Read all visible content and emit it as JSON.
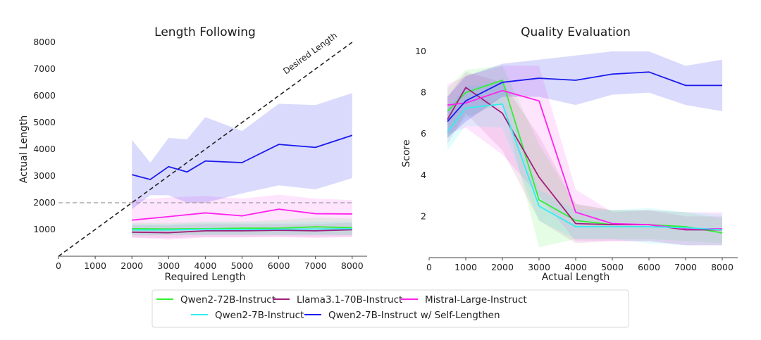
{
  "chart_data": [
    {
      "type": "line",
      "title": "Length Following",
      "xlabel": "Required Length",
      "ylabel": "Actual Length",
      "xlim": [
        0,
        8400
      ],
      "ylim": [
        0,
        8000
      ],
      "xticks": [
        0,
        1000,
        2000,
        3000,
        4000,
        5000,
        6000,
        7000,
        8000
      ],
      "yticks": [
        1000,
        2000,
        3000,
        4000,
        5000,
        6000,
        7000,
        8000
      ],
      "grid": false,
      "reference_lines": [
        {
          "label": "Desired Length",
          "from": [
            0,
            0
          ],
          "to": [
            8000,
            8000
          ],
          "style": "dashed",
          "color": "#222222"
        },
        {
          "label": "",
          "y": 2000,
          "from_x": 0,
          "to_x": 8000,
          "style": "dashed",
          "color": "#999999"
        }
      ],
      "series": [
        {
          "name": "Qwen2-72B-Instruct",
          "color": "#33ee33",
          "x": [
            2000,
            3000,
            4000,
            5000,
            6000,
            7000,
            8000
          ],
          "values": [
            1030,
            1020,
            1030,
            1050,
            1050,
            1100,
            1070
          ],
          "lower": [
            780,
            780,
            800,
            800,
            800,
            800,
            800
          ],
          "upper": [
            1250,
            1250,
            1300,
            1300,
            1350,
            1450,
            1400
          ]
        },
        {
          "name": "Llama3.1-70B-Instruct",
          "color": "#a0207a",
          "x": [
            2000,
            3000,
            4000,
            5000,
            6000,
            7000,
            8000
          ],
          "values": [
            900,
            880,
            950,
            950,
            970,
            950,
            990
          ],
          "lower": [
            700,
            680,
            720,
            720,
            740,
            720,
            740
          ],
          "upper": [
            1150,
            1150,
            1200,
            1200,
            1200,
            1200,
            1250
          ]
        },
        {
          "name": "Mistral-Large-Instruct",
          "color": "#ff22ee",
          "x": [
            2000,
            3000,
            4000,
            5000,
            6000,
            7000,
            8000
          ],
          "values": [
            1350,
            1480,
            1620,
            1510,
            1760,
            1590,
            1580
          ],
          "lower": [
            700,
            620,
            700,
            700,
            720,
            680,
            720
          ],
          "upper": [
            2100,
            2200,
            2250,
            2150,
            2300,
            2150,
            2100
          ]
        },
        {
          "name": "Qwen2-7B-Instruct",
          "color": "#33eeee",
          "x": [
            2000,
            3000,
            4000,
            5000,
            6000,
            7000,
            8000
          ],
          "values": [
            980,
            980,
            1010,
            1000,
            1010,
            1020,
            1030
          ],
          "lower": [
            800,
            800,
            800,
            800,
            800,
            800,
            800
          ],
          "upper": [
            1200,
            1200,
            1250,
            1250,
            1250,
            1300,
            1300
          ]
        },
        {
          "name": "Qwen2-7B-Instruct w/ Self-Lengthen",
          "color": "#1a1aee",
          "x": [
            2000,
            2500,
            3000,
            3500,
            4000,
            5000,
            6000,
            7000,
            8000
          ],
          "values": [
            3050,
            2870,
            3350,
            3150,
            3560,
            3500,
            4180,
            4070,
            4520
          ],
          "lower": [
            1750,
            2280,
            2280,
            2000,
            2000,
            2350,
            2650,
            2500,
            2920
          ],
          "upper": [
            4350,
            3500,
            4420,
            4370,
            5200,
            4680,
            5700,
            5650,
            6100
          ]
        }
      ]
    },
    {
      "type": "line",
      "title": "Quality Evaluation",
      "xlabel": "Actual Length",
      "ylabel": "Score",
      "xlim": [
        0,
        8400
      ],
      "ylim": [
        0,
        10
      ],
      "xticks": [
        0,
        1000,
        2000,
        3000,
        4000,
        5000,
        6000,
        7000,
        8000
      ],
      "yticks": [
        2,
        4,
        6,
        8,
        10
      ],
      "grid": false,
      "series": [
        {
          "name": "Qwen2-72B-Instruct",
          "color": "#33ee33",
          "x": [
            500,
            1000,
            2000,
            3000,
            4000,
            5000,
            6000,
            7000,
            8000
          ],
          "values": [
            7.1,
            8.0,
            8.6,
            2.8,
            1.8,
            1.6,
            1.6,
            1.5,
            1.2
          ],
          "lower": [
            5.8,
            6.8,
            7.5,
            0.5,
            0.9,
            0.9,
            0.9,
            0.8,
            0.7
          ],
          "upper": [
            8.2,
            9.1,
            9.3,
            5.5,
            2.6,
            2.3,
            2.3,
            2.2,
            1.9
          ]
        },
        {
          "name": "Llama3.1-70B-Instruct",
          "color": "#a0207a",
          "x": [
            500,
            1000,
            2000,
            3000,
            4000,
            5000,
            6000,
            7000,
            8000
          ],
          "values": [
            6.7,
            8.25,
            7.0,
            3.9,
            1.65,
            1.6,
            1.6,
            1.35,
            1.35
          ],
          "lower": [
            5.5,
            7.0,
            5.2,
            1.8,
            0.7,
            0.8,
            0.8,
            0.6,
            0.6
          ],
          "upper": [
            7.8,
            9.0,
            8.5,
            5.9,
            2.6,
            2.3,
            2.3,
            2.0,
            2.0
          ]
        },
        {
          "name": "Mistral-Large-Instruct",
          "color": "#ff22ee",
          "x": [
            500,
            1000,
            2000,
            3000,
            4000,
            5000,
            6000,
            7000,
            8000
          ],
          "values": [
            7.4,
            7.5,
            8.1,
            7.6,
            2.2,
            1.65,
            1.6,
            1.4,
            1.4
          ],
          "lower": [
            6.0,
            6.3,
            5.0,
            3.0,
            0.8,
            0.8,
            0.8,
            0.6,
            0.6
          ],
          "upper": [
            8.4,
            8.8,
            9.3,
            9.3,
            3.3,
            2.2,
            2.3,
            2.2,
            2.2
          ]
        },
        {
          "name": "Qwen2-7B-Instruct",
          "color": "#33eeee",
          "x": [
            500,
            1000,
            2000,
            3000,
            4000,
            5000,
            6000,
            7000,
            8000
          ],
          "values": [
            6.1,
            7.25,
            7.45,
            2.5,
            1.5,
            1.5,
            1.5,
            1.45,
            1.35
          ],
          "lower": [
            5.2,
            6.4,
            6.3,
            1.8,
            0.9,
            0.9,
            0.7,
            0.6,
            0.6
          ],
          "upper": [
            7.2,
            8.3,
            8.5,
            3.3,
            2.3,
            2.3,
            2.4,
            2.2,
            2.1
          ]
        },
        {
          "name": "Qwen2-7B-Instruct w/ Self-Lengthen",
          "color": "#1a1aee",
          "x": [
            500,
            1000,
            2000,
            3000,
            4000,
            5000,
            6000,
            7000,
            8000
          ],
          "values": [
            6.6,
            7.6,
            8.5,
            8.7,
            8.6,
            8.9,
            9.0,
            8.35,
            8.35
          ],
          "lower": [
            5.8,
            6.6,
            7.8,
            7.8,
            7.4,
            7.9,
            8.0,
            7.4,
            7.1
          ],
          "upper": [
            7.8,
            8.8,
            9.4,
            9.6,
            9.8,
            10.0,
            10.0,
            9.3,
            9.6
          ]
        }
      ]
    }
  ],
  "legend": {
    "placement": "bottom-center",
    "items": [
      {
        "label": "Qwen2-72B-Instruct",
        "color": "#33ee33"
      },
      {
        "label": "Llama3.1-70B-Instruct",
        "color": "#a0207a"
      },
      {
        "label": "Mistral-Large-Instruct",
        "color": "#ff22ee"
      },
      {
        "label": "Qwen2-7B-Instruct",
        "color": "#33eeee"
      },
      {
        "label": "Qwen2-7B-Instruct w/ Self-Lengthen",
        "color": "#1a1aee"
      }
    ]
  }
}
